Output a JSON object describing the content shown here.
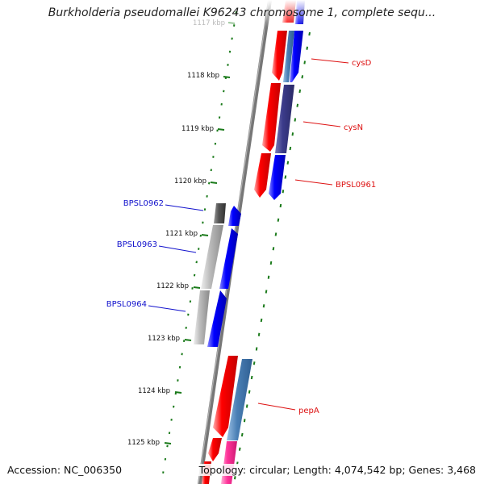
{
  "title": "Burkholderia pseudomallei K96243 chromosome 1, complete sequ...",
  "footer": {
    "accession": "Accession: NC_006350",
    "summary": "Topology: circular; Length: 4,074,542 bp; Genes: 3,468"
  },
  "ruler": {
    "tick_labels": [
      "1117 kbp",
      "1118 kbp",
      "1119 kbp",
      "1120 kbp",
      "1121 kbp",
      "1122 kbp",
      "1123 kbp",
      "1124 kbp",
      "1125 kbp"
    ],
    "tick_color": "#1a7a1a"
  },
  "gene_labels": {
    "forward": [
      "cysD",
      "cysN",
      "BPSL0961",
      "pepA"
    ],
    "reverse": [
      "BPSL0962",
      "BPSL0963",
      "BPSL0964"
    ]
  },
  "colors": {
    "forward_label": "#dd1111",
    "reverse_label": "#1111cc",
    "backbone": "#777777",
    "red_gene": "#ff0000",
    "blue_gene": "#0000ff",
    "navy_gene": "#3b3b8a",
    "steel_gene": "#4a7fb5",
    "grey_gene": "#bbbbbb",
    "dark_grey_gene": "#555555",
    "pink_gene": "#ff3399"
  }
}
